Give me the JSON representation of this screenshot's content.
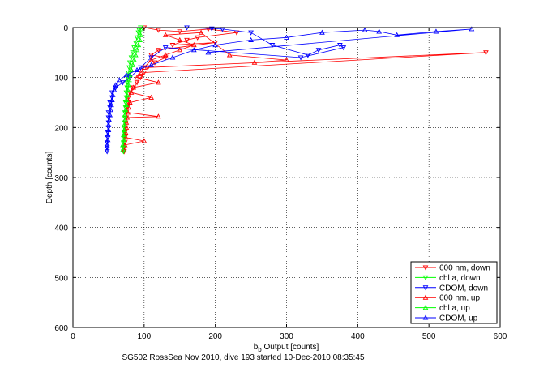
{
  "caption": "SG502 RossSea Nov 2010, dive 193 started 10-Dec-2010 08:35:45",
  "chart_data": {
    "type": "scatter",
    "xlabel_main": "b",
    "xlabel_sub": "b",
    "xlabel_rest": " Output [counts]",
    "ylabel": "Depth [counts]",
    "xlim": [
      0,
      600
    ],
    "ylim": [
      0,
      600
    ],
    "y_reversed": true,
    "xticks": [
      0,
      100,
      200,
      300,
      400,
      500,
      600
    ],
    "yticks": [
      0,
      100,
      200,
      300,
      400,
      500,
      600
    ],
    "grid": true,
    "grid_style": "dotted",
    "legend_position": "bottom-right",
    "series": [
      {
        "name": "600 nm, down",
        "color": "#ff0000",
        "marker": "triangle-down",
        "points": [
          [
            100,
            0
          ],
          [
            120,
            5
          ],
          [
            150,
            8
          ],
          [
            190,
            3
          ],
          [
            230,
            10
          ],
          [
            175,
            20
          ],
          [
            160,
            25
          ],
          [
            140,
            35
          ],
          [
            200,
            30
          ],
          [
            120,
            45
          ],
          [
            110,
            55
          ],
          [
            130,
            60
          ],
          [
            115,
            70
          ],
          [
            105,
            80
          ],
          [
            580,
            50
          ],
          [
            100,
            90
          ],
          [
            95,
            100
          ],
          [
            90,
            110
          ],
          [
            85,
            120
          ],
          [
            80,
            130
          ],
          [
            78,
            140
          ],
          [
            78,
            150
          ],
          [
            76,
            160
          ],
          [
            75,
            170
          ],
          [
            75,
            180
          ],
          [
            74,
            190
          ],
          [
            74,
            200
          ],
          [
            73,
            210
          ],
          [
            73,
            220
          ],
          [
            73,
            230
          ],
          [
            72,
            240
          ],
          [
            72,
            248
          ]
        ]
      },
      {
        "name": "chl a, down",
        "color": "#00ff00",
        "marker": "triangle-down",
        "points": [
          [
            95,
            0
          ],
          [
            93,
            5
          ],
          [
            92,
            10
          ],
          [
            90,
            20
          ],
          [
            88,
            30
          ],
          [
            86,
            40
          ],
          [
            84,
            50
          ],
          [
            82,
            60
          ],
          [
            80,
            70
          ],
          [
            79,
            80
          ],
          [
            78,
            90
          ],
          [
            77,
            100
          ],
          [
            76,
            110
          ],
          [
            76,
            120
          ],
          [
            75,
            130
          ],
          [
            75,
            140
          ],
          [
            74,
            150
          ],
          [
            74,
            160
          ],
          [
            73,
            170
          ],
          [
            73,
            180
          ],
          [
            73,
            190
          ],
          [
            72,
            200
          ],
          [
            72,
            210
          ],
          [
            72,
            220
          ],
          [
            71,
            230
          ],
          [
            71,
            240
          ],
          [
            71,
            248
          ]
        ]
      },
      {
        "name": "CDOM, down",
        "color": "#0000ff",
        "marker": "triangle-down",
        "points": [
          [
            160,
            0
          ],
          [
            195,
            2
          ],
          [
            210,
            3
          ],
          [
            250,
            10
          ],
          [
            280,
            35
          ],
          [
            330,
            55
          ],
          [
            345,
            45
          ],
          [
            375,
            35
          ],
          [
            380,
            40
          ],
          [
            320,
            60
          ],
          [
            130,
            40
          ],
          [
            110,
            60
          ],
          [
            95,
            80
          ],
          [
            80,
            100
          ],
          [
            70,
            110
          ],
          [
            60,
            120
          ],
          [
            55,
            130
          ],
          [
            55,
            140
          ],
          [
            52,
            150
          ],
          [
            52,
            160
          ],
          [
            50,
            170
          ],
          [
            50,
            180
          ],
          [
            50,
            190
          ],
          [
            50,
            200
          ],
          [
            49,
            210
          ],
          [
            49,
            220
          ],
          [
            48,
            230
          ],
          [
            48,
            240
          ],
          [
            48,
            248
          ]
        ]
      },
      {
        "name": "600 nm, up",
        "color": "#ff0000",
        "marker": "triangle-up",
        "points": [
          [
            72,
            245
          ],
          [
            73,
            235
          ],
          [
            100,
            227
          ],
          [
            74,
            220
          ],
          [
            74,
            210
          ],
          [
            75,
            200
          ],
          [
            75,
            190
          ],
          [
            76,
            180
          ],
          [
            120,
            178
          ],
          [
            77,
            170
          ],
          [
            78,
            160
          ],
          [
            80,
            150
          ],
          [
            110,
            140
          ],
          [
            82,
            130
          ],
          [
            85,
            120
          ],
          [
            120,
            110
          ],
          [
            90,
            100
          ],
          [
            95,
            90
          ],
          [
            100,
            80
          ],
          [
            110,
            65
          ],
          [
            130,
            55
          ],
          [
            150,
            45
          ],
          [
            170,
            35
          ],
          [
            150,
            25
          ],
          [
            130,
            15
          ],
          [
            180,
            10
          ],
          [
            220,
            55
          ],
          [
            300,
            65
          ],
          [
            255,
            70
          ]
        ]
      },
      {
        "name": "chl a, up",
        "color": "#00ff00",
        "marker": "triangle-up",
        "points": [
          [
            70,
            245
          ],
          [
            70,
            235
          ],
          [
            71,
            225
          ],
          [
            71,
            215
          ],
          [
            72,
            205
          ],
          [
            72,
            195
          ],
          [
            73,
            185
          ],
          [
            73,
            175
          ],
          [
            74,
            165
          ],
          [
            75,
            155
          ],
          [
            75,
            145
          ],
          [
            76,
            135
          ],
          [
            77,
            125
          ],
          [
            78,
            115
          ],
          [
            79,
            105
          ],
          [
            80,
            95
          ],
          [
            82,
            85
          ],
          [
            84,
            75
          ],
          [
            86,
            65
          ],
          [
            88,
            55
          ],
          [
            90,
            45
          ],
          [
            92,
            35
          ],
          [
            94,
            25
          ],
          [
            95,
            15
          ],
          [
            96,
            5
          ]
        ]
      },
      {
        "name": "CDOM, up",
        "color": "#0000ff",
        "marker": "triangle-up",
        "points": [
          [
            48,
            245
          ],
          [
            48,
            235
          ],
          [
            49,
            225
          ],
          [
            49,
            215
          ],
          [
            50,
            205
          ],
          [
            50,
            195
          ],
          [
            51,
            185
          ],
          [
            52,
            175
          ],
          [
            53,
            165
          ],
          [
            54,
            155
          ],
          [
            55,
            145
          ],
          [
            56,
            135
          ],
          [
            58,
            125
          ],
          [
            60,
            115
          ],
          [
            65,
            105
          ],
          [
            75,
            95
          ],
          [
            90,
            85
          ],
          [
            110,
            75
          ],
          [
            140,
            60
          ],
          [
            170,
            45
          ],
          [
            200,
            35
          ],
          [
            250,
            25
          ],
          [
            300,
            20
          ],
          [
            350,
            10
          ],
          [
            410,
            5
          ],
          [
            430,
            8
          ],
          [
            455,
            15
          ],
          [
            510,
            8
          ],
          [
            560,
            3
          ],
          [
            190,
            50
          ]
        ]
      }
    ]
  }
}
